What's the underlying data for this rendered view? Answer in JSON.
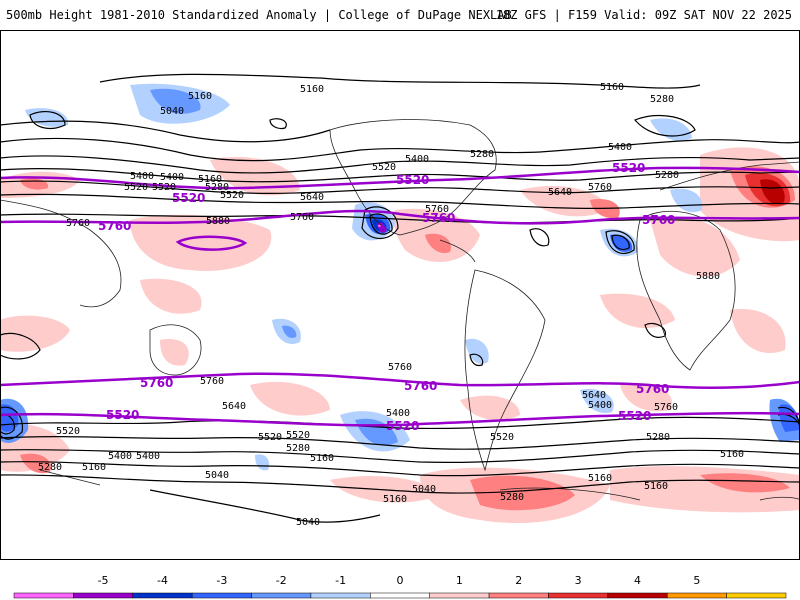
{
  "header": {
    "title": "500mb Height 1981-2010 Standardized Anomaly | College of DuPage NEXLAB",
    "run_info": "18Z GFS | F159 Valid: 09Z SAT NOV 22 2025"
  },
  "colors": {
    "background": "#ffffff",
    "contour": "#000000",
    "highlight_contour": "#9900cc",
    "coastline": "#222222"
  },
  "colorbar": {
    "ticks": [
      "-5",
      "-4",
      "-3",
      "-2",
      "-1",
      "0",
      "1",
      "2",
      "3",
      "4",
      "5"
    ],
    "bins": [
      "#ff66ff",
      "#9900cc",
      "#0033cc",
      "#3366ff",
      "#6699ff",
      "#b3d1ff",
      "#ffffff",
      "#ffcccc",
      "#ff8080",
      "#e83030",
      "#b80000",
      "#ff9900",
      "#ffcc00"
    ]
  },
  "map_labels": {
    "black": [
      {
        "text": "5160"
      },
      {
        "text": "5040"
      },
      {
        "text": "5160"
      },
      {
        "text": "5160"
      },
      {
        "text": "5280"
      },
      {
        "text": "5400"
      },
      {
        "text": "5520"
      },
      {
        "text": "5400"
      },
      {
        "text": "5280"
      },
      {
        "text": "5160"
      },
      {
        "text": "5280"
      },
      {
        "text": "5640"
      },
      {
        "text": "5760"
      },
      {
        "text": "5880"
      },
      {
        "text": "5520"
      },
      {
        "text": "5400"
      },
      {
        "text": "5280"
      },
      {
        "text": "5640"
      },
      {
        "text": "5760"
      },
      {
        "text": "5760"
      },
      {
        "text": "5400"
      },
      {
        "text": "5520"
      },
      {
        "text": "5760"
      },
      {
        "text": "5880"
      },
      {
        "text": "5760"
      },
      {
        "text": "5760"
      },
      {
        "text": "5640"
      },
      {
        "text": "5520"
      },
      {
        "text": "5400"
      },
      {
        "text": "5280"
      },
      {
        "text": "5160"
      },
      {
        "text": "5040"
      },
      {
        "text": "5040"
      },
      {
        "text": "5400"
      },
      {
        "text": "5520"
      },
      {
        "text": "5040"
      },
      {
        "text": "5160"
      },
      {
        "text": "5280"
      },
      {
        "text": "5640"
      },
      {
        "text": "5400"
      },
      {
        "text": "5760"
      },
      {
        "text": "5520"
      },
      {
        "text": "5280"
      },
      {
        "text": "5160"
      },
      {
        "text": "5160"
      },
      {
        "text": "5160"
      },
      {
        "text": "5520"
      },
      {
        "text": "5280"
      },
      {
        "text": "5160"
      },
      {
        "text": "5400"
      },
      {
        "text": "5520"
      }
    ],
    "purple": [
      {
        "text": "5520"
      },
      {
        "text": "5760"
      },
      {
        "text": "5520"
      },
      {
        "text": "5760"
      },
      {
        "text": "5520"
      },
      {
        "text": "5760"
      },
      {
        "text": "5760"
      },
      {
        "text": "5520"
      },
      {
        "text": "5760"
      },
      {
        "text": "5520"
      },
      {
        "text": "5760"
      },
      {
        "text": "5520"
      }
    ]
  }
}
